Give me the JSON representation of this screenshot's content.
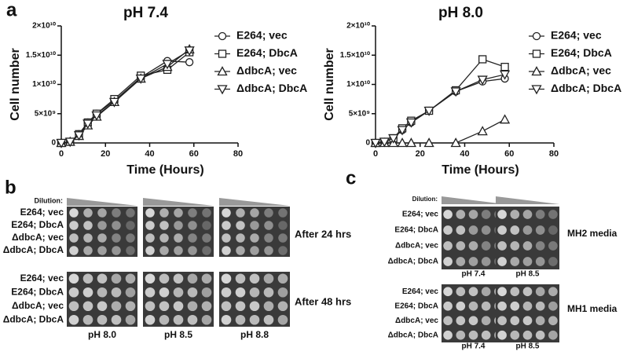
{
  "panel_labels": [
    "a",
    "b",
    "c"
  ],
  "chart_data": [
    {
      "type": "line",
      "title": "pH 7.4",
      "x_label": "Time (Hours)",
      "y_label": "Cell number",
      "x": [
        0,
        4,
        8,
        12,
        16,
        24,
        36,
        48,
        58
      ],
      "xlim": [
        0,
        80
      ],
      "xticks": [
        0,
        20,
        40,
        60,
        80
      ],
      "ylim": [
        0,
        20000000000
      ],
      "yticks": [
        0,
        {
          "value": 5000000000,
          "label": "5×10⁹"
        },
        {
          "value": 10000000000,
          "label": "1×10¹⁰"
        },
        {
          "value": 15000000000,
          "label": "1.5×10¹⁰"
        },
        {
          "value": 20000000000,
          "label": "2×10¹⁰"
        }
      ],
      "series": [
        {
          "name": "E264; vec",
          "marker": "circle",
          "color": "#222222",
          "values": [
            0,
            200000000,
            1500000000,
            3500000000,
            5000000000,
            7200000000,
            11200000000,
            14000000000,
            13800000000
          ]
        },
        {
          "name": "E264; DbcA",
          "marker": "square",
          "color": "#222222",
          "values": [
            0,
            200000000,
            1500000000,
            3500000000,
            5000000000,
            7500000000,
            11500000000,
            12500000000,
            15500000000
          ]
        },
        {
          "name": "ΔdbcA; vec",
          "marker": "triangle-up",
          "color": "#222222",
          "values": [
            0,
            200000000,
            1200000000,
            3000000000,
            4500000000,
            7000000000,
            11000000000,
            13000000000,
            16000000000
          ]
        },
        {
          "name": "ΔdbcA; DbcA",
          "marker": "triangle-down",
          "color": "#222222",
          "values": [
            0,
            200000000,
            1300000000,
            3300000000,
            4700000000,
            7000000000,
            11000000000,
            13500000000,
            15800000000
          ]
        }
      ]
    },
    {
      "type": "line",
      "title": "pH 8.0",
      "x_label": "Time (Hours)",
      "y_label": "Cell number",
      "x": [
        0,
        4,
        8,
        12,
        16,
        24,
        36,
        48,
        58
      ],
      "xlim": [
        0,
        80
      ],
      "xticks": [
        0,
        20,
        40,
        60,
        80
      ],
      "ylim": [
        0,
        20000000000
      ],
      "yticks": [
        0,
        {
          "value": 5000000000,
          "label": "5×10⁹"
        },
        {
          "value": 10000000000,
          "label": "1×10¹⁰"
        },
        {
          "value": 15000000000,
          "label": "1.5×10¹⁰"
        },
        {
          "value": 20000000000,
          "label": "2×10¹⁰"
        }
      ],
      "series": [
        {
          "name": "E264; vec",
          "marker": "circle",
          "color": "#222222",
          "values": [
            0,
            200000000,
            800000000,
            2200000000,
            3500000000,
            5500000000,
            8800000000,
            10500000000,
            11000000000
          ]
        },
        {
          "name": "E264; DbcA",
          "marker": "square",
          "color": "#222222",
          "values": [
            0,
            200000000,
            800000000,
            2500000000,
            3800000000,
            5500000000,
            9000000000,
            14300000000,
            13000000000
          ]
        },
        {
          "name": "ΔdbcA; vec",
          "marker": "triangle-up",
          "color": "#222222",
          "values": [
            0,
            0,
            0,
            0,
            0,
            0,
            0,
            2000000000,
            4000000000
          ]
        },
        {
          "name": "ΔdbcA; DbcA",
          "marker": "triangle-down",
          "color": "#222222",
          "values": [
            0,
            200000000,
            800000000,
            2200000000,
            3500000000,
            5500000000,
            8800000000,
            10800000000,
            11700000000
          ]
        }
      ]
    }
  ],
  "panel_b": {
    "dilution_label": "Dilution:",
    "strains": [
      "E264; vec",
      "E264; DbcA",
      "ΔdbcA; vec",
      "ΔdbcA; DbcA"
    ],
    "conditions": [
      "After 24 hrs",
      "After 48 hrs"
    ],
    "ph": [
      "pH 8.0",
      "pH 8.5",
      "pH 8.8"
    ]
  },
  "panel_c": {
    "dilution_label": "Dilution:",
    "strains": [
      "E264; vec",
      "E264; DbcA",
      "ΔdbcA; vec",
      "ΔdbcA; DbcA"
    ],
    "blocks": [
      {
        "media": "MH2 media",
        "ph": [
          "pH 7.4",
          "pH 8.5"
        ]
      },
      {
        "media": "MH1 media",
        "ph": [
          "pH 7.4",
          "pH 8.5"
        ]
      }
    ]
  }
}
